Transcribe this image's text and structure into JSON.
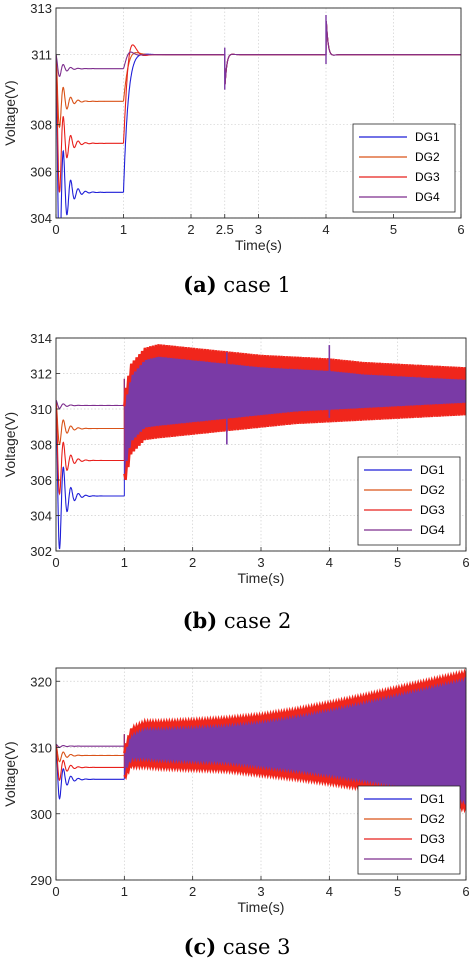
{
  "colors": {
    "DG1": "#1f1fd8",
    "DG2": "#d95319",
    "DG3": "#e8201c",
    "DG4": "#7e2f8e",
    "band": "#7a3aa6",
    "edge": "#f0261c"
  },
  "chart_data": [
    {
      "type": "line",
      "caption_label": "(a)",
      "caption_text": "case 1",
      "xlabel": "Time(s)",
      "ylabel": "Voltage(V)",
      "xlim": [
        0,
        6
      ],
      "ylim": [
        304,
        313
      ],
      "xticks": [
        "0",
        "1",
        "2",
        "2.5",
        "3",
        "4",
        "5",
        "6"
      ],
      "xtick_values": [
        0,
        1,
        2,
        2.5,
        3,
        4,
        5,
        6
      ],
      "yticks": [
        "304",
        "306",
        "308",
        "311",
        "313"
      ],
      "ytick_values": [
        304,
        306,
        308,
        311,
        313
      ],
      "grid": true,
      "legend_position": "lower-right",
      "series": [
        {
          "name": "DG1",
          "values_0_to_1s": 305.1,
          "after_1s": 311.0
        },
        {
          "name": "DG2",
          "values_0_to_1s": 309.0,
          "after_1s": 311.0
        },
        {
          "name": "DG3",
          "values_0_to_1s": 307.2,
          "after_1s": 311.0
        },
        {
          "name": "DG4",
          "values_0_to_1s": 310.4,
          "after_1s": 311.0
        }
      ],
      "disturbances": [
        {
          "t": 2.5,
          "min": 309.5,
          "max": 311.3
        },
        {
          "t": 4.0,
          "min": 310.6,
          "max": 312.7
        }
      ]
    },
    {
      "type": "line",
      "caption_label": "(b)",
      "caption_text": "case 2",
      "xlabel": "Time(s)",
      "ylabel": "Voltage(V)",
      "xlim": [
        0,
        6
      ],
      "ylim": [
        302,
        314
      ],
      "xticks": [
        "0",
        "1",
        "2",
        "3",
        "4",
        "5",
        "6"
      ],
      "xtick_values": [
        0,
        1,
        2,
        3,
        4,
        5,
        6
      ],
      "yticks": [
        "302",
        "304",
        "306",
        "308",
        "310",
        "312",
        "314"
      ],
      "ytick_values": [
        302,
        304,
        306,
        308,
        310,
        312,
        314
      ],
      "grid": true,
      "legend_position": "lower-right",
      "series": [
        {
          "name": "DG1",
          "values_0_to_1s": 305.1
        },
        {
          "name": "DG2",
          "values_0_to_1s": 308.9
        },
        {
          "name": "DG3",
          "values_0_to_1s": 307.1
        },
        {
          "name": "DG4",
          "values_0_to_1s": 310.2
        }
      ],
      "oscillation_envelope": {
        "t": [
          1.0,
          1.1,
          1.3,
          1.5,
          2.0,
          2.5,
          3.0,
          3.5,
          4.0,
          4.5,
          5.0,
          5.5,
          6.0
        ],
        "upper": [
          310.5,
          312.2,
          313.1,
          313.3,
          313.1,
          312.9,
          312.7,
          312.6,
          312.5,
          312.3,
          312.2,
          312.1,
          312.0
        ],
        "lower": [
          306.0,
          307.8,
          308.6,
          308.7,
          308.9,
          309.1,
          309.3,
          309.5,
          309.6,
          309.7,
          309.8,
          309.9,
          310.0
        ]
      },
      "disturbances": [
        {
          "t": 2.5,
          "min": 308.0,
          "max": 313.2
        },
        {
          "t": 4.0,
          "min": 309.5,
          "max": 313.6
        }
      ]
    },
    {
      "type": "line",
      "caption_label": "(c)",
      "caption_text": "case 3",
      "xlabel": "Time(s)",
      "ylabel": "Voltage(V)",
      "xlim": [
        0,
        6
      ],
      "ylim": [
        290,
        322
      ],
      "xticks": [
        "0",
        "1",
        "2",
        "3",
        "4",
        "5",
        "6"
      ],
      "xtick_values": [
        0,
        1,
        2,
        3,
        4,
        5,
        6
      ],
      "yticks": [
        "290",
        "300",
        "310",
        "320"
      ],
      "ytick_values": [
        290,
        300,
        310,
        320
      ],
      "grid": true,
      "legend_position": "lower-right",
      "series": [
        {
          "name": "DG1",
          "values_0_to_1s": 305.2
        },
        {
          "name": "DG2",
          "values_0_to_1s": 308.8
        },
        {
          "name": "DG3",
          "values_0_to_1s": 307.0
        },
        {
          "name": "DG4",
          "values_0_to_1s": 310.2
        }
      ],
      "oscillation_envelope": {
        "t": [
          1.0,
          1.1,
          1.3,
          1.5,
          2.0,
          2.5,
          3.0,
          3.5,
          4.0,
          4.5,
          5.0,
          5.5,
          6.0
        ],
        "upper": [
          309.5,
          312.5,
          313.5,
          313.5,
          313.7,
          314.0,
          314.5,
          315.3,
          316.3,
          317.4,
          318.6,
          319.8,
          321.0
        ],
        "lower": [
          305.5,
          307.5,
          307.5,
          307.3,
          307.1,
          306.9,
          306.3,
          305.7,
          305.0,
          304.2,
          303.3,
          302.2,
          301.0
        ]
      },
      "disturbances": []
    }
  ]
}
